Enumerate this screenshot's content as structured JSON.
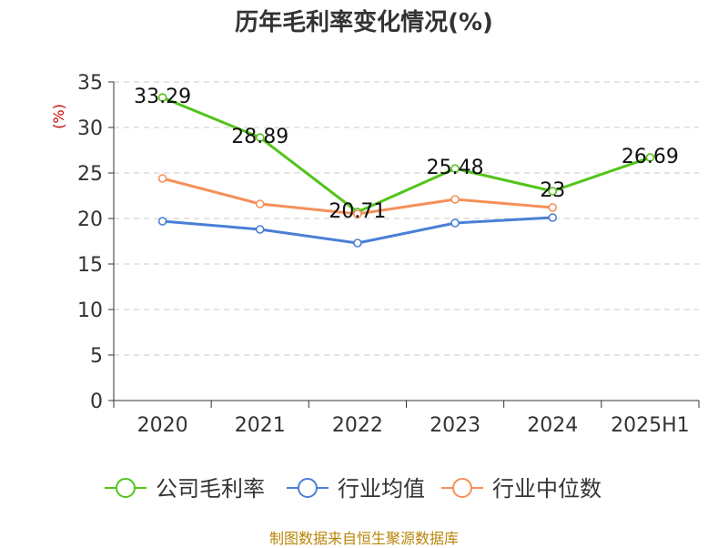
{
  "chart_data": {
    "type": "line",
    "title": "历年毛利率变化情况(%)",
    "ylabel": "(%)",
    "xlabel": "",
    "categories": [
      "2020",
      "2021",
      "2022",
      "2023",
      "2024",
      "2025H1"
    ],
    "ylim": [
      0,
      35
    ],
    "yticks": [
      0,
      5,
      10,
      15,
      20,
      25,
      30,
      35
    ],
    "grid": true,
    "legend_position": "bottom",
    "series": [
      {
        "name": "公司毛利率",
        "color": "#52c41a",
        "values": [
          33.29,
          28.89,
          20.71,
          25.48,
          23,
          26.69
        ],
        "labels": [
          "33.29",
          "28.89",
          "20.71",
          "25.48",
          "23",
          "26.69"
        ]
      },
      {
        "name": "行业均值",
        "color": "#4a7fd6",
        "values": [
          19.7,
          18.8,
          17.3,
          19.5,
          20.1,
          null
        ]
      },
      {
        "name": "行业中位数",
        "color": "#f5905a",
        "values": [
          24.4,
          21.6,
          20.5,
          22.1,
          21.2,
          null
        ]
      }
    ]
  },
  "source": "制图数据来自恒生聚源数据库"
}
